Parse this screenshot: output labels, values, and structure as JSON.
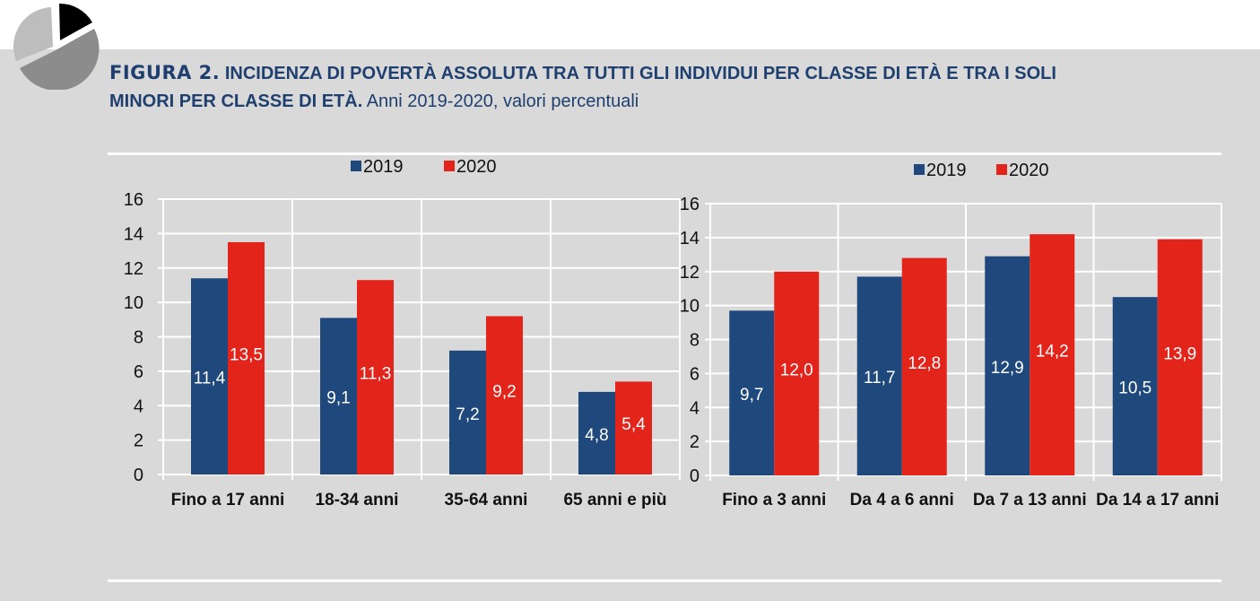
{
  "figure": {
    "label": "FIGURA 2.",
    "title_bold_line1": "INCIDENZA DI POVERTÀ ASSOLUTA TRA TUTTI GLI INDIVIDUI PER CLASSE DI ETÀ E TRA I SOLI",
    "title_bold_line2": "MINORI PER CLASSE DI ETÀ.",
    "subtitle": "Anni 2019-2020, valori percentuali",
    "logo_icon": "pie-chart-icon"
  },
  "colors": {
    "series_2019": "#1f487c",
    "series_2020": "#e3241b",
    "title": "#1f3f6e",
    "background": "#d9d9d9",
    "grid": "#ffffff"
  },
  "chart_data": [
    {
      "type": "bar",
      "title": "",
      "xlabel": "",
      "ylabel": "",
      "ylim": [
        0,
        16
      ],
      "yticks": [
        "0",
        "2",
        "4",
        "6",
        "8",
        "10",
        "12",
        "14",
        "16"
      ],
      "grid": true,
      "legend_position": "top-center",
      "categories": [
        "Fino a 17 anni",
        "18-34 anni",
        "35-64 anni",
        "65 anni e più"
      ],
      "series": [
        {
          "name": "2019",
          "values": [
            11.4,
            9.1,
            7.2,
            4.8
          ],
          "labels": [
            "11,4",
            "9,1",
            "7,2",
            "4,8"
          ]
        },
        {
          "name": "2020",
          "values": [
            13.5,
            11.3,
            9.2,
            5.4
          ],
          "labels": [
            "13,5",
            "11,3",
            "9,2",
            "5,4"
          ]
        }
      ]
    },
    {
      "type": "bar",
      "title": "",
      "xlabel": "",
      "ylabel": "",
      "ylim": [
        0,
        16
      ],
      "yticks": [
        "0",
        "2",
        "4",
        "6",
        "8",
        "10",
        "12",
        "14",
        "16"
      ],
      "grid": true,
      "legend_position": "top-center",
      "categories": [
        "Fino a 3 anni",
        "Da 4 a 6 anni",
        "Da 7 a 13 anni",
        "Da 14 a 17 anni"
      ],
      "series": [
        {
          "name": "2019",
          "values": [
            9.7,
            11.7,
            12.9,
            10.5
          ],
          "labels": [
            "9,7",
            "11,7",
            "12,9",
            "10,5"
          ]
        },
        {
          "name": "2020",
          "values": [
            12.0,
            12.8,
            14.2,
            13.9
          ],
          "labels": [
            "12,0",
            "12,8",
            "14,2",
            "13,9"
          ]
        }
      ]
    }
  ]
}
